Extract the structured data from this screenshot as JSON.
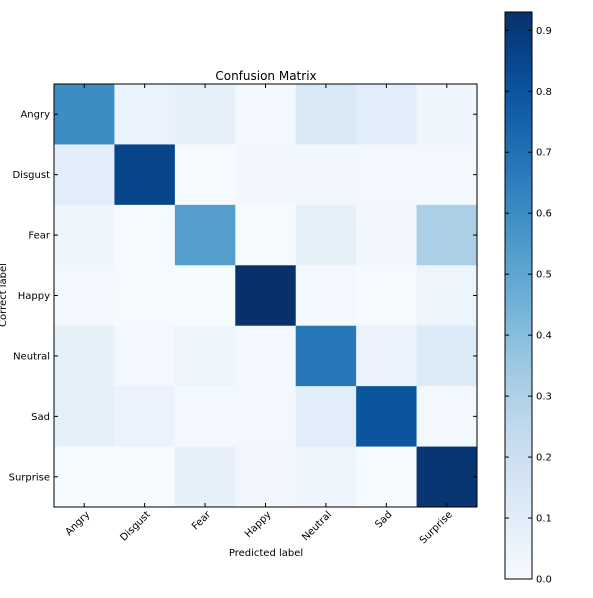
{
  "chart_data": {
    "type": "heatmap",
    "title": "Confusion Matrix",
    "xlabel": "Predicted label",
    "ylabel": "Correct label",
    "categories": [
      "Angry",
      "Disgust",
      "Fear",
      "Happy",
      "Neutral",
      "Sad",
      "Surprise"
    ],
    "rows": [
      "Angry",
      "Disgust",
      "Fear",
      "Happy",
      "Neutral",
      "Sad",
      "Surprise"
    ],
    "values": [
      [
        0.6,
        0.06,
        0.08,
        0.02,
        0.14,
        0.1,
        0.04
      ],
      [
        0.1,
        0.86,
        0.01,
        0.03,
        0.03,
        0.02,
        0.02
      ],
      [
        0.04,
        0.01,
        0.53,
        0.01,
        0.08,
        0.03,
        0.31
      ],
      [
        0.02,
        0.01,
        0.01,
        0.94,
        0.02,
        0.01,
        0.05
      ],
      [
        0.08,
        0.02,
        0.05,
        0.02,
        0.68,
        0.06,
        0.12
      ],
      [
        0.09,
        0.06,
        0.02,
        0.02,
        0.1,
        0.8,
        0.02
      ],
      [
        0.01,
        0.01,
        0.08,
        0.03,
        0.04,
        0.01,
        0.91
      ]
    ],
    "colorbar": {
      "min": 0.0,
      "max": 0.93,
      "ticks": [
        0.0,
        0.1,
        0.2,
        0.3,
        0.4,
        0.5,
        0.6,
        0.7,
        0.8,
        0.9
      ],
      "tick_labels": [
        "0.0",
        "0.1",
        "0.2",
        "0.3",
        "0.4",
        "0.5",
        "0.6",
        "0.7",
        "0.8",
        "0.9"
      ],
      "colormap": "Blues",
      "color_low": "#f7fbff",
      "color_high": "#08306b"
    },
    "grid": false
  }
}
